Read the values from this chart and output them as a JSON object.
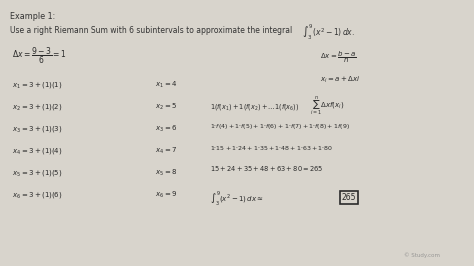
{
  "bg_color": "#d8d4cc",
  "text_color": "#2a2a2a",
  "print_color": "#333333",
  "hw_color": "#2a2a2a",
  "watermark": "© Study.com",
  "figsize": [
    4.74,
    2.66
  ],
  "dpi": 100,
  "fs_print": 5.8,
  "fs_hand": 5.5,
  "fs_hand_sm": 5.0,
  "left_lines": [
    [
      "$x_1 = 3 + (1)(1)$",
      "$x_1 = 4$"
    ],
    [
      "$x_2 = 3 + (1)(2)$",
      "$x_2 = 5$"
    ],
    [
      "$x_3 = 3 + (1)(3)$",
      "$x_3 = 6$"
    ],
    [
      "$x_4 = 3 + (1)(4)$",
      "$x_4 = 7$"
    ],
    [
      "$x_5 = 3 + (1)(5)$",
      "$x_5 = 8$"
    ],
    [
      "$x_6 = 3 + (1)(6)$",
      "$x_6 = 9$"
    ]
  ]
}
